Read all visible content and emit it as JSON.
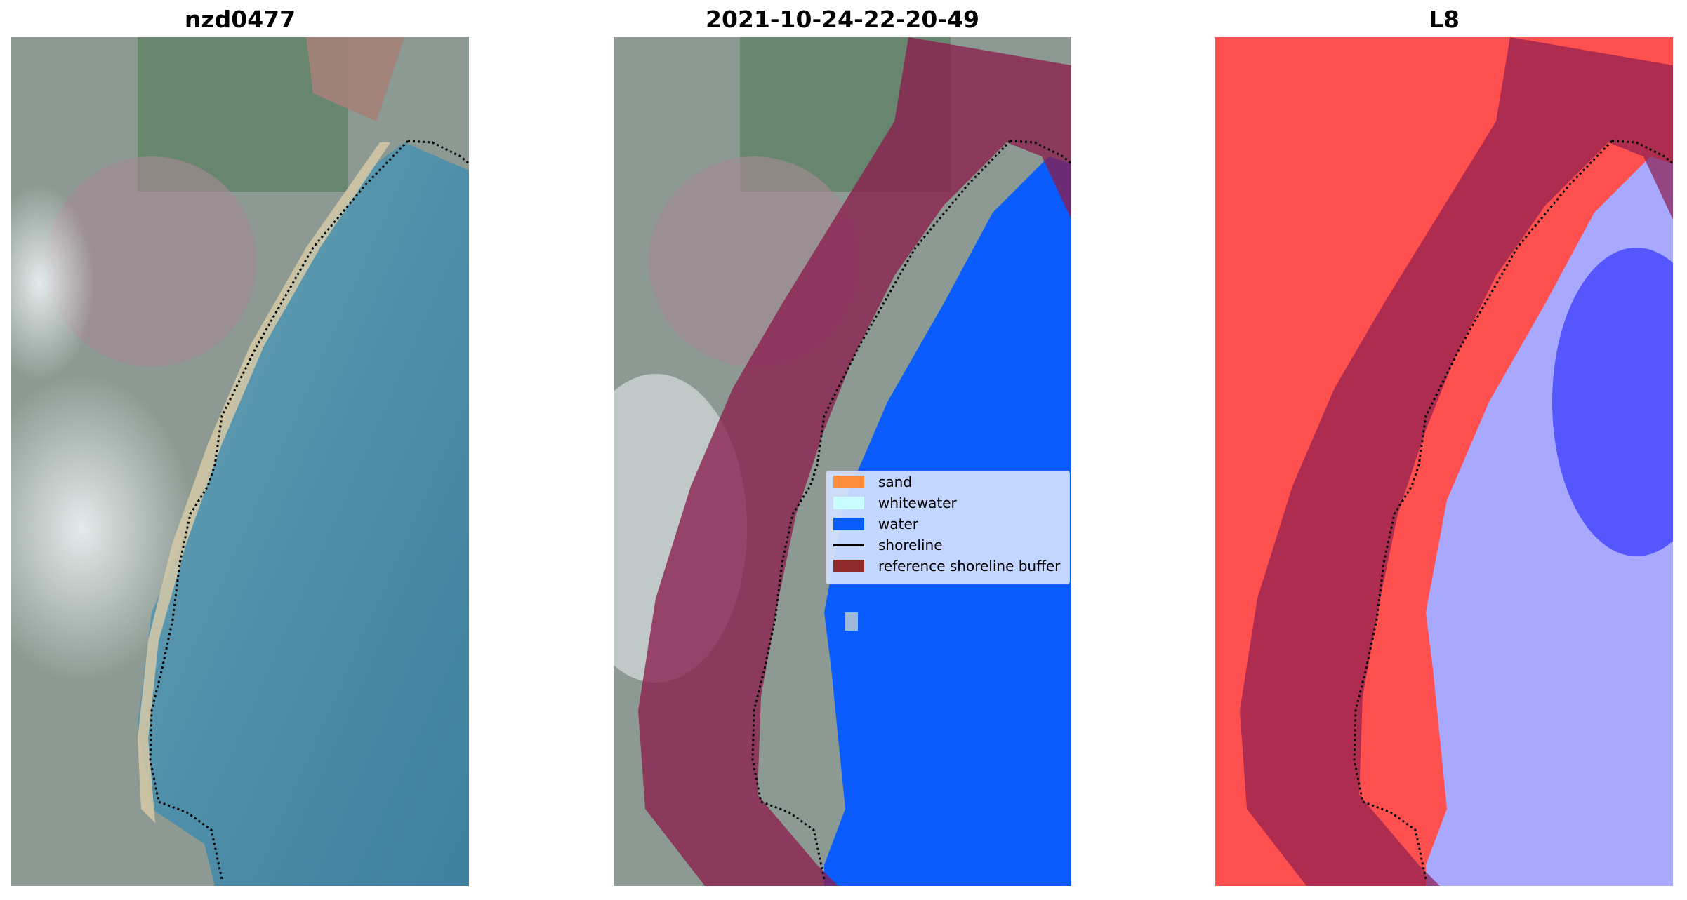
{
  "panels": [
    {
      "title": "nzd0477"
    },
    {
      "title": "2021-10-24-22-20-49"
    },
    {
      "title": "L8"
    }
  ],
  "legend": {
    "items": [
      {
        "label": "sand",
        "color": "#ff8c3a",
        "kind": "patch"
      },
      {
        "label": "whitewater",
        "color": "#c8fcff",
        "kind": "patch"
      },
      {
        "label": "water",
        "color": "#0a5cff",
        "kind": "patch"
      },
      {
        "label": "shoreline",
        "color": "#000000",
        "kind": "line"
      },
      {
        "label": "reference shoreline buffer",
        "color": "#8e2a2a",
        "kind": "patch"
      }
    ]
  },
  "colors": {
    "ocean": "#4f8fa9",
    "land": "#8d9a93",
    "classified_water": "#0a5cff",
    "buffer": "#8b1d4e",
    "index_red": "#ff2020",
    "index_blue": "#1a1aff"
  }
}
